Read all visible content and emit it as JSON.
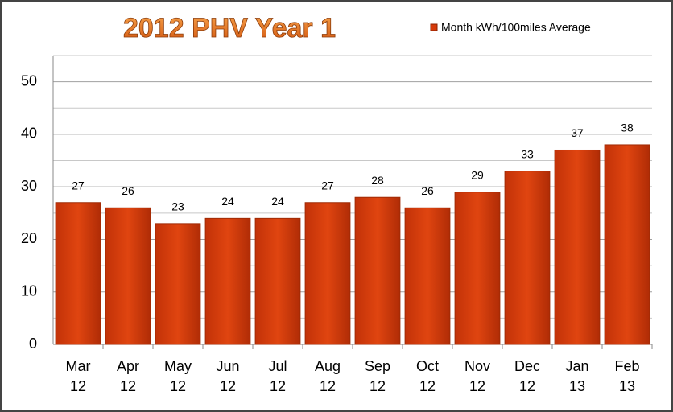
{
  "chart_data": {
    "type": "bar",
    "title": "2012 PHV  Year 1",
    "categories": [
      [
        "Mar",
        "12"
      ],
      [
        "Apr",
        "12"
      ],
      [
        "May",
        "12"
      ],
      [
        "Jun",
        "12"
      ],
      [
        "Jul",
        "12"
      ],
      [
        "Aug",
        "12"
      ],
      [
        "Sep",
        "12"
      ],
      [
        "Oct",
        "12"
      ],
      [
        "Nov",
        "12"
      ],
      [
        "Dec",
        "12"
      ],
      [
        "Jan",
        "13"
      ],
      [
        "Feb",
        "13"
      ]
    ],
    "series": [
      {
        "name": "Month kWh/100miles  Average",
        "color": "#d63a0a",
        "values": [
          27,
          26,
          23,
          24,
          24,
          27,
          28,
          26,
          29,
          33,
          37,
          38
        ]
      }
    ],
    "ylim": [
      0,
      55
    ],
    "yticks": [
      0,
      10,
      20,
      30,
      40,
      50
    ],
    "minor_yticks": [
      5,
      15,
      25,
      35,
      45,
      55
    ],
    "grid": true
  }
}
